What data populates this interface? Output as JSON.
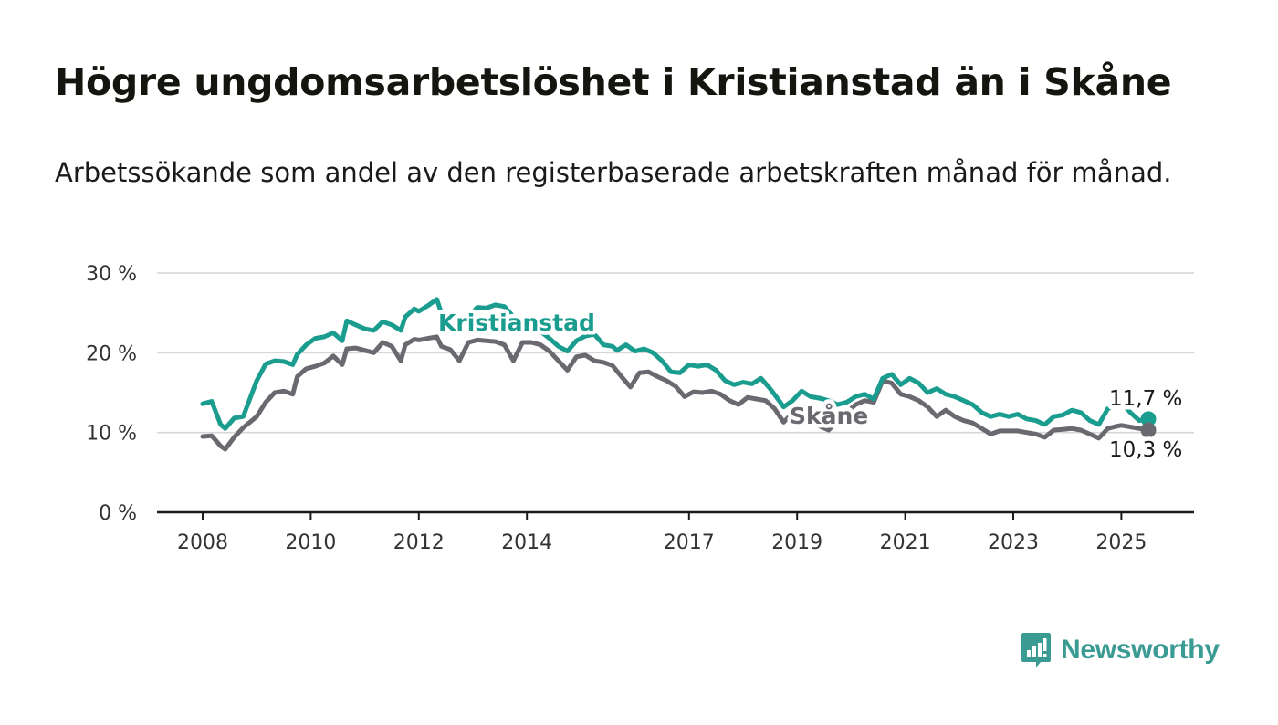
{
  "title": "Högre ungdomsarbetslöshet i Kristianstad än i Skåne",
  "subtitle": "Arbetssökande som andel av den registerbaserade arbetskraften månad för månad.",
  "brand": {
    "name": "Newsworthy",
    "color": "#3a9b93",
    "icon": "newsworthy-logo-icon"
  },
  "chart_data": {
    "type": "line",
    "title": "Högre ungdomsarbetslöshet i Kristianstad än i Skåne",
    "subtitle": "Arbetssökande som andel av den registerbaserade arbetskraften månad för månad.",
    "xlabel": "",
    "ylabel": "",
    "x_start": "2008-01",
    "x_end": "2025-07",
    "x_ticks": [
      "2008",
      "2010",
      "2012",
      "2014",
      "2017",
      "2019",
      "2021",
      "2023",
      "2025"
    ],
    "y_ticks": [
      "0 %",
      "10 %",
      "20 %",
      "30 %"
    ],
    "y_tick_values": [
      0,
      10,
      20,
      30
    ],
    "ylim": [
      0,
      30
    ],
    "grid": true,
    "series": [
      {
        "name": "Kristianstad",
        "color": "#1a9d8f",
        "end_label": "11,7 %",
        "points": [
          [
            "2008-01",
            13.6
          ],
          [
            "2008-03",
            13.9
          ],
          [
            "2008-05",
            11.0
          ],
          [
            "2008-06",
            10.5
          ],
          [
            "2008-08",
            11.8
          ],
          [
            "2008-10",
            12.0
          ],
          [
            "2009-01",
            16.5
          ],
          [
            "2009-03",
            18.6
          ],
          [
            "2009-05",
            19.0
          ],
          [
            "2009-07",
            18.9
          ],
          [
            "2009-09",
            18.5
          ],
          [
            "2009-10",
            19.8
          ],
          [
            "2009-12",
            21.0
          ],
          [
            "2010-02",
            21.8
          ],
          [
            "2010-04",
            22.0
          ],
          [
            "2010-06",
            22.5
          ],
          [
            "2010-08",
            21.5
          ],
          [
            "2010-09",
            24.0
          ],
          [
            "2010-11",
            23.5
          ],
          [
            "2011-01",
            23.0
          ],
          [
            "2011-03",
            22.8
          ],
          [
            "2011-05",
            23.9
          ],
          [
            "2011-07",
            23.5
          ],
          [
            "2011-09",
            22.8
          ],
          [
            "2011-10",
            24.5
          ],
          [
            "2011-12",
            25.5
          ],
          [
            "2012-01",
            25.2
          ],
          [
            "2012-03",
            25.9
          ],
          [
            "2012-05",
            26.7
          ],
          [
            "2012-06",
            25.0
          ],
          [
            "2012-08",
            24.6
          ],
          [
            "2012-10",
            23.2
          ],
          [
            "2012-12",
            24.5
          ],
          [
            "2013-02",
            25.7
          ],
          [
            "2013-04",
            25.6
          ],
          [
            "2013-06",
            26.0
          ],
          [
            "2013-08",
            25.8
          ],
          [
            "2013-10",
            24.5
          ],
          [
            "2013-12",
            24.2
          ],
          [
            "2014-02",
            23.5
          ],
          [
            "2014-04",
            22.7
          ],
          [
            "2014-06",
            21.8
          ],
          [
            "2014-08",
            20.8
          ],
          [
            "2014-10",
            20.2
          ],
          [
            "2014-12",
            21.5
          ],
          [
            "2015-02",
            22.1
          ],
          [
            "2015-04",
            22.3
          ],
          [
            "2015-06",
            21.0
          ],
          [
            "2015-08",
            20.8
          ],
          [
            "2015-09",
            20.3
          ],
          [
            "2015-11",
            21.0
          ],
          [
            "2016-01",
            20.2
          ],
          [
            "2016-03",
            20.5
          ],
          [
            "2016-05",
            20.0
          ],
          [
            "2016-07",
            19.0
          ],
          [
            "2016-09",
            17.6
          ],
          [
            "2016-11",
            17.5
          ],
          [
            "2017-01",
            18.5
          ],
          [
            "2017-03",
            18.3
          ],
          [
            "2017-05",
            18.5
          ],
          [
            "2017-07",
            17.8
          ],
          [
            "2017-09",
            16.5
          ],
          [
            "2017-11",
            16.0
          ],
          [
            "2018-01",
            16.3
          ],
          [
            "2018-03",
            16.1
          ],
          [
            "2018-05",
            16.8
          ],
          [
            "2018-07",
            15.5
          ],
          [
            "2018-09",
            14.0
          ],
          [
            "2018-10",
            13.2
          ],
          [
            "2018-12",
            14.0
          ],
          [
            "2019-02",
            15.2
          ],
          [
            "2019-04",
            14.5
          ],
          [
            "2019-06",
            14.3
          ],
          [
            "2019-08",
            14.0
          ],
          [
            "2019-10",
            13.5
          ],
          [
            "2019-12",
            13.8
          ],
          [
            "2020-02",
            14.5
          ],
          [
            "2020-04",
            14.8
          ],
          [
            "2020-06",
            14.2
          ],
          [
            "2020-08",
            16.8
          ],
          [
            "2020-10",
            17.3
          ],
          [
            "2020-12",
            16.0
          ],
          [
            "2021-02",
            16.8
          ],
          [
            "2021-04",
            16.2
          ],
          [
            "2021-06",
            15.0
          ],
          [
            "2021-08",
            15.5
          ],
          [
            "2021-10",
            14.8
          ],
          [
            "2021-12",
            14.5
          ],
          [
            "2022-02",
            14.0
          ],
          [
            "2022-04",
            13.5
          ],
          [
            "2022-06",
            12.5
          ],
          [
            "2022-08",
            12.0
          ],
          [
            "2022-10",
            12.3
          ],
          [
            "2022-12",
            12.0
          ],
          [
            "2023-02",
            12.3
          ],
          [
            "2023-04",
            11.7
          ],
          [
            "2023-06",
            11.5
          ],
          [
            "2023-08",
            11.0
          ],
          [
            "2023-10",
            12.0
          ],
          [
            "2023-12",
            12.2
          ],
          [
            "2024-02",
            12.8
          ],
          [
            "2024-04",
            12.5
          ],
          [
            "2024-06",
            11.5
          ],
          [
            "2024-08",
            11.0
          ],
          [
            "2024-10",
            13.0
          ],
          [
            "2024-12",
            13.5
          ],
          [
            "2025-01",
            13.8
          ],
          [
            "2025-03",
            12.5
          ],
          [
            "2025-05",
            11.5
          ],
          [
            "2025-07",
            11.7
          ]
        ]
      },
      {
        "name": "Skåne",
        "color": "#6a6970",
        "end_label": "10,3 %",
        "points": [
          [
            "2008-01",
            9.5
          ],
          [
            "2008-03",
            9.6
          ],
          [
            "2008-05",
            8.3
          ],
          [
            "2008-06",
            7.9
          ],
          [
            "2008-08",
            9.4
          ],
          [
            "2008-10",
            10.6
          ],
          [
            "2009-01",
            12.0
          ],
          [
            "2009-03",
            13.8
          ],
          [
            "2009-05",
            15.0
          ],
          [
            "2009-07",
            15.2
          ],
          [
            "2009-09",
            14.8
          ],
          [
            "2009-10",
            17.0
          ],
          [
            "2009-12",
            18.0
          ],
          [
            "2010-02",
            18.3
          ],
          [
            "2010-04",
            18.7
          ],
          [
            "2010-06",
            19.6
          ],
          [
            "2010-08",
            18.5
          ],
          [
            "2010-09",
            20.5
          ],
          [
            "2010-11",
            20.6
          ],
          [
            "2011-01",
            20.3
          ],
          [
            "2011-03",
            20.0
          ],
          [
            "2011-05",
            21.3
          ],
          [
            "2011-07",
            20.8
          ],
          [
            "2011-09",
            19.0
          ],
          [
            "2011-10",
            21.0
          ],
          [
            "2011-12",
            21.7
          ],
          [
            "2012-01",
            21.6
          ],
          [
            "2012-03",
            21.8
          ],
          [
            "2012-05",
            22.0
          ],
          [
            "2012-06",
            20.8
          ],
          [
            "2012-08",
            20.4
          ],
          [
            "2012-10",
            19.0
          ],
          [
            "2012-12",
            21.3
          ],
          [
            "2013-02",
            21.6
          ],
          [
            "2013-04",
            21.5
          ],
          [
            "2013-06",
            21.4
          ],
          [
            "2013-08",
            21.0
          ],
          [
            "2013-10",
            19.0
          ],
          [
            "2013-12",
            21.3
          ],
          [
            "2014-02",
            21.3
          ],
          [
            "2014-04",
            21.0
          ],
          [
            "2014-06",
            20.2
          ],
          [
            "2014-08",
            19.0
          ],
          [
            "2014-10",
            17.8
          ],
          [
            "2014-12",
            19.5
          ],
          [
            "2015-02",
            19.7
          ],
          [
            "2015-04",
            19.0
          ],
          [
            "2015-06",
            18.8
          ],
          [
            "2015-08",
            18.4
          ],
          [
            "2015-10",
            17.0
          ],
          [
            "2015-12",
            15.7
          ],
          [
            "2016-02",
            17.5
          ],
          [
            "2016-04",
            17.6
          ],
          [
            "2016-06",
            17.0
          ],
          [
            "2016-08",
            16.5
          ],
          [
            "2016-10",
            15.8
          ],
          [
            "2016-12",
            14.5
          ],
          [
            "2017-02",
            15.1
          ],
          [
            "2017-04",
            15.0
          ],
          [
            "2017-06",
            15.2
          ],
          [
            "2017-08",
            14.8
          ],
          [
            "2017-10",
            14.0
          ],
          [
            "2017-12",
            13.5
          ],
          [
            "2018-02",
            14.4
          ],
          [
            "2018-04",
            14.2
          ],
          [
            "2018-06",
            14.0
          ],
          [
            "2018-08",
            13.0
          ],
          [
            "2018-10",
            11.3
          ],
          [
            "2018-12",
            12.4
          ],
          [
            "2019-02",
            12.6
          ],
          [
            "2019-04",
            11.8
          ],
          [
            "2019-06",
            10.8
          ],
          [
            "2019-08",
            10.3
          ],
          [
            "2019-10",
            11.5
          ],
          [
            "2019-12",
            12.5
          ],
          [
            "2020-02",
            13.5
          ],
          [
            "2020-04",
            14.0
          ],
          [
            "2020-06",
            13.8
          ],
          [
            "2020-08",
            16.5
          ],
          [
            "2020-10",
            16.2
          ],
          [
            "2020-12",
            14.8
          ],
          [
            "2021-02",
            14.5
          ],
          [
            "2021-04",
            14.0
          ],
          [
            "2021-06",
            13.2
          ],
          [
            "2021-08",
            12.0
          ],
          [
            "2021-10",
            12.8
          ],
          [
            "2021-12",
            12.0
          ],
          [
            "2022-02",
            11.5
          ],
          [
            "2022-04",
            11.2
          ],
          [
            "2022-06",
            10.5
          ],
          [
            "2022-08",
            9.8
          ],
          [
            "2022-10",
            10.2
          ],
          [
            "2022-12",
            10.2
          ],
          [
            "2023-02",
            10.2
          ],
          [
            "2023-04",
            10.0
          ],
          [
            "2023-06",
            9.8
          ],
          [
            "2023-08",
            9.4
          ],
          [
            "2023-10",
            10.3
          ],
          [
            "2023-12",
            10.4
          ],
          [
            "2024-02",
            10.5
          ],
          [
            "2024-04",
            10.3
          ],
          [
            "2024-06",
            9.8
          ],
          [
            "2024-08",
            9.3
          ],
          [
            "2024-10",
            10.5
          ],
          [
            "2024-12",
            10.8
          ],
          [
            "2025-01",
            10.9
          ],
          [
            "2025-03",
            10.7
          ],
          [
            "2025-05",
            10.5
          ],
          [
            "2025-07",
            10.3
          ]
        ]
      }
    ]
  }
}
